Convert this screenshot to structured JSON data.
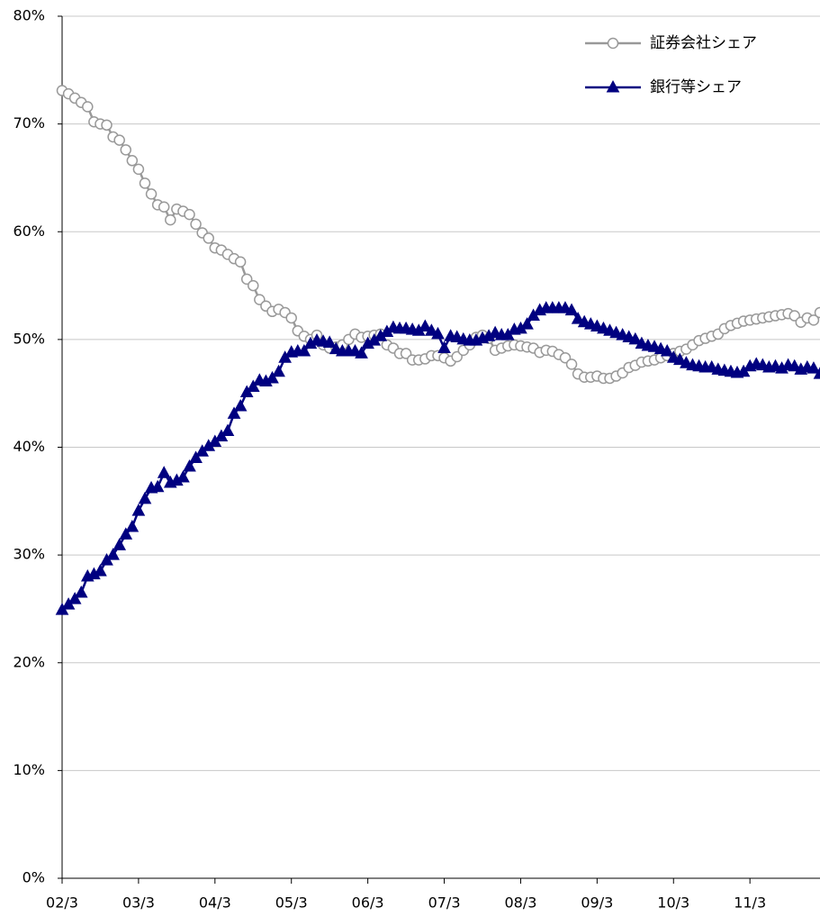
{
  "chart_data": {
    "type": "line",
    "categories": [
      "02/3",
      null,
      null,
      null,
      null,
      null,
      null,
      null,
      null,
      null,
      null,
      null,
      "03/3",
      null,
      null,
      null,
      null,
      null,
      null,
      null,
      null,
      null,
      null,
      null,
      "04/3",
      null,
      null,
      null,
      null,
      null,
      null,
      null,
      null,
      null,
      null,
      null,
      "05/3",
      null,
      null,
      null,
      null,
      null,
      null,
      null,
      null,
      null,
      null,
      null,
      "06/3",
      null,
      null,
      null,
      null,
      null,
      null,
      null,
      null,
      null,
      null,
      null,
      "07/3",
      null,
      null,
      null,
      null,
      null,
      null,
      null,
      null,
      null,
      null,
      null,
      "08/3",
      null,
      null,
      null,
      null,
      null,
      null,
      null,
      null,
      null,
      null,
      null,
      "09/3",
      null,
      null,
      null,
      null,
      null,
      null,
      null,
      null,
      null,
      null,
      null,
      "10/3",
      null,
      null,
      null,
      null,
      null,
      null,
      null,
      null,
      null,
      null,
      null,
      "11/3",
      null,
      null,
      null,
      null,
      null,
      null,
      null,
      null,
      null,
      null,
      null
    ],
    "series": [
      {
        "name": "証券会社シェア",
        "color": "#999999",
        "marker": "circle",
        "values": [
          73.1,
          72.8,
          72.4,
          72.0,
          71.6,
          70.2,
          70.0,
          69.9,
          68.8,
          68.5,
          67.6,
          66.6,
          65.8,
          64.5,
          63.5,
          62.5,
          62.3,
          61.1,
          62.1,
          61.9,
          61.6,
          60.7,
          59.9,
          59.4,
          58.5,
          58.3,
          57.9,
          57.5,
          57.2,
          55.6,
          55.0,
          53.7,
          53.1,
          52.6,
          52.8,
          52.5,
          52.0,
          50.8,
          50.3,
          50.0,
          50.4,
          49.5,
          49.2,
          49.3,
          49.5,
          50.0,
          50.5,
          50.2,
          50.3,
          50.4,
          50.5,
          49.5,
          49.2,
          48.7,
          48.7,
          48.1,
          48.1,
          48.2,
          48.5,
          48.5,
          48.3,
          48.0,
          48.4,
          49.0,
          49.5,
          50.2,
          50.4,
          50.1,
          49.0,
          49.2,
          49.4,
          49.5,
          49.4,
          49.3,
          49.2,
          48.8,
          49.0,
          48.9,
          48.6,
          48.3,
          47.7,
          46.8,
          46.5,
          46.5,
          46.6,
          46.4,
          46.4,
          46.6,
          46.9,
          47.4,
          47.6,
          47.9,
          48.0,
          48.1,
          48.3,
          48.5,
          48.7,
          48.9,
          49.1,
          49.5,
          49.9,
          50.1,
          50.3,
          50.5,
          51.0,
          51.3,
          51.5,
          51.7,
          51.8,
          51.9,
          52.0,
          52.1,
          52.2,
          52.3,
          52.4,
          52.2,
          51.6,
          52.0,
          51.8,
          52.5
        ]
      },
      {
        "name": "銀行等シェア",
        "color": "#000080",
        "marker": "triangle",
        "values": [
          24.9,
          25.4,
          25.9,
          26.5,
          28.0,
          28.2,
          28.5,
          29.5,
          30.0,
          30.9,
          31.9,
          32.6,
          34.1,
          35.2,
          36.2,
          36.3,
          37.6,
          36.7,
          36.9,
          37.2,
          38.2,
          39.0,
          39.6,
          40.1,
          40.5,
          41.0,
          41.5,
          43.1,
          43.8,
          45.1,
          45.6,
          46.2,
          46.1,
          46.4,
          47.0,
          48.3,
          48.8,
          48.9,
          48.9,
          49.6,
          49.9,
          49.8,
          49.7,
          49.1,
          48.9,
          48.9,
          48.9,
          48.7,
          49.6,
          49.9,
          50.3,
          50.7,
          51.1,
          51.0,
          51.0,
          50.9,
          50.8,
          51.2,
          50.8,
          50.5,
          49.2,
          50.3,
          50.2,
          50.0,
          49.9,
          49.9,
          50.1,
          50.3,
          50.6,
          50.4,
          50.4,
          50.9,
          51.0,
          51.4,
          52.2,
          52.7,
          52.9,
          52.9,
          52.9,
          52.9,
          52.7,
          51.9,
          51.6,
          51.4,
          51.2,
          51.0,
          50.8,
          50.6,
          50.4,
          50.2,
          50.0,
          49.6,
          49.4,
          49.3,
          49.1,
          48.9,
          48.3,
          48.1,
          47.8,
          47.6,
          47.5,
          47.4,
          47.4,
          47.2,
          47.1,
          47.0,
          46.9,
          47.0,
          47.5,
          47.7,
          47.6,
          47.4,
          47.5,
          47.3,
          47.6,
          47.5,
          47.2,
          47.4,
          47.3,
          46.8
        ]
      }
    ],
    "ylim": [
      0,
      80
    ],
    "yticks": [
      {
        "value": 0,
        "label": "0%"
      },
      {
        "value": 10,
        "label": "10%"
      },
      {
        "value": 20,
        "label": "20%"
      },
      {
        "value": 30,
        "label": "30%"
      },
      {
        "value": 40,
        "label": "40%"
      },
      {
        "value": 50,
        "label": "50%"
      },
      {
        "value": 60,
        "label": "60%"
      },
      {
        "value": 70,
        "label": "70%"
      },
      {
        "value": 80,
        "label": "80%"
      }
    ],
    "grid": true,
    "legend": "top-right"
  }
}
